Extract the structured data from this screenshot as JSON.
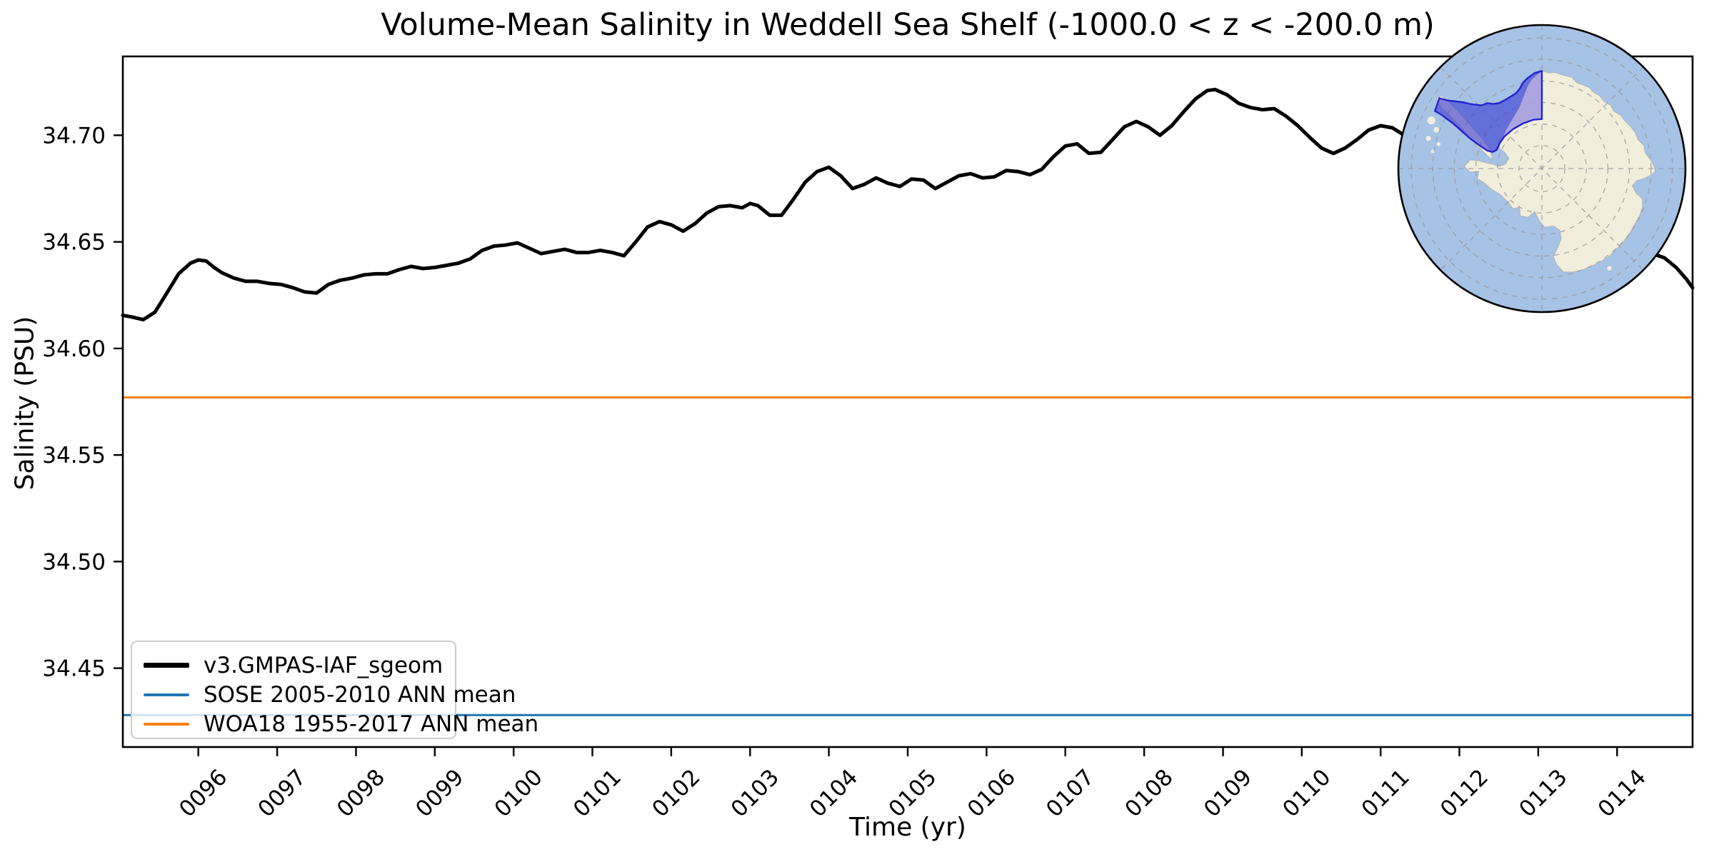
{
  "title": "Volume-Mean Salinity in Weddell Sea Shelf (-1000.0 < z < -200.0 m)",
  "axes": {
    "x": {
      "label": "Time (yr)",
      "tick_values": [
        96,
        97,
        98,
        99,
        100,
        101,
        102,
        103,
        104,
        105,
        106,
        107,
        108,
        109,
        110,
        111,
        112,
        113,
        114
      ],
      "tick_labels": [
        "0096",
        "0097",
        "0098",
        "0099",
        "0100",
        "0101",
        "0102",
        "0103",
        "0104",
        "0105",
        "0106",
        "0107",
        "0108",
        "0109",
        "0110",
        "0111",
        "0112",
        "0113",
        "0114"
      ],
      "lim": [
        95.042,
        114.958
      ],
      "tick_label_rotation_deg": 45
    },
    "y": {
      "label": "Salinity (PSU)",
      "tick_values": [
        34.45,
        34.5,
        34.55,
        34.6,
        34.65,
        34.7
      ],
      "tick_labels": [
        "34.45",
        "34.50",
        "34.55",
        "34.60",
        "34.65",
        "34.70"
      ],
      "lim": [
        34.413,
        34.737
      ]
    }
  },
  "legend": {
    "position": "lower left",
    "items": [
      {
        "label": "v3.GMPAS-IAF_sgeom",
        "color": "#000000",
        "thickness": "thick"
      },
      {
        "label": "SOSE 2005-2010 ANN mean",
        "color": "#1f77b4",
        "thickness": "thin"
      },
      {
        "label": "WOA18 1955-2017 ANN mean",
        "color": "#ff7f0e",
        "thickness": "thin"
      }
    ]
  },
  "chart_data": {
    "type": "line",
    "title": "Volume-Mean Salinity in Weddell Sea Shelf (-1000.0 < z < -200.0 m)",
    "xlabel": "Time (yr)",
    "ylabel": "Salinity (PSU)",
    "xlim": [
      95.042,
      114.958
    ],
    "ylim": [
      34.413,
      34.737
    ],
    "grid": false,
    "series": [
      {
        "name": "v3.GMPAS-IAF_sgeom",
        "color": "#000000",
        "line_width": 5,
        "points": [
          [
            95.042,
            34.6155
          ],
          [
            95.15,
            34.6148
          ],
          [
            95.3,
            34.6135
          ],
          [
            95.45,
            34.617
          ],
          [
            95.6,
            34.626
          ],
          [
            95.75,
            34.635
          ],
          [
            95.9,
            34.64
          ],
          [
            96.0,
            34.6415
          ],
          [
            96.1,
            34.641
          ],
          [
            96.2,
            34.638
          ],
          [
            96.3,
            34.6355
          ],
          [
            96.45,
            34.633
          ],
          [
            96.6,
            34.6315
          ],
          [
            96.75,
            34.6315
          ],
          [
            96.9,
            34.6305
          ],
          [
            97.05,
            34.63
          ],
          [
            97.2,
            34.6285
          ],
          [
            97.35,
            34.6265
          ],
          [
            97.5,
            34.626
          ],
          [
            97.65,
            34.63
          ],
          [
            97.8,
            34.632
          ],
          [
            97.95,
            34.633
          ],
          [
            98.1,
            34.6345
          ],
          [
            98.25,
            34.635
          ],
          [
            98.4,
            34.635
          ],
          [
            98.55,
            34.637
          ],
          [
            98.7,
            34.6385
          ],
          [
            98.85,
            34.6375
          ],
          [
            99.0,
            34.638
          ],
          [
            99.15,
            34.639
          ],
          [
            99.3,
            34.64
          ],
          [
            99.45,
            34.642
          ],
          [
            99.6,
            34.646
          ],
          [
            99.75,
            34.648
          ],
          [
            99.9,
            34.6485
          ],
          [
            100.05,
            34.6495
          ],
          [
            100.2,
            34.647
          ],
          [
            100.35,
            34.6445
          ],
          [
            100.5,
            34.6455
          ],
          [
            100.65,
            34.6465
          ],
          [
            100.8,
            34.645
          ],
          [
            100.95,
            34.645
          ],
          [
            101.1,
            34.646
          ],
          [
            101.25,
            34.645
          ],
          [
            101.4,
            34.6435
          ],
          [
            101.55,
            34.65
          ],
          [
            101.7,
            34.657
          ],
          [
            101.85,
            34.6595
          ],
          [
            102.0,
            34.658
          ],
          [
            102.15,
            34.655
          ],
          [
            102.3,
            34.6585
          ],
          [
            102.45,
            34.6635
          ],
          [
            102.6,
            34.6665
          ],
          [
            102.75,
            34.667
          ],
          [
            102.9,
            34.666
          ],
          [
            103.0,
            34.668
          ],
          [
            103.1,
            34.667
          ],
          [
            103.25,
            34.6625
          ],
          [
            103.4,
            34.6625
          ],
          [
            103.55,
            34.67
          ],
          [
            103.7,
            34.678
          ],
          [
            103.85,
            34.683
          ],
          [
            104.0,
            34.685
          ],
          [
            104.15,
            34.681
          ],
          [
            104.3,
            34.675
          ],
          [
            104.45,
            34.677
          ],
          [
            104.6,
            34.68
          ],
          [
            104.75,
            34.6775
          ],
          [
            104.9,
            34.676
          ],
          [
            105.05,
            34.6795
          ],
          [
            105.2,
            34.679
          ],
          [
            105.35,
            34.675
          ],
          [
            105.5,
            34.678
          ],
          [
            105.65,
            34.681
          ],
          [
            105.8,
            34.682
          ],
          [
            105.95,
            34.68
          ],
          [
            106.1,
            34.6805
          ],
          [
            106.25,
            34.6835
          ],
          [
            106.4,
            34.683
          ],
          [
            106.55,
            34.6815
          ],
          [
            106.7,
            34.684
          ],
          [
            106.85,
            34.69
          ],
          [
            107.0,
            34.695
          ],
          [
            107.15,
            34.696
          ],
          [
            107.3,
            34.6915
          ],
          [
            107.45,
            34.692
          ],
          [
            107.6,
            34.698
          ],
          [
            107.75,
            34.704
          ],
          [
            107.9,
            34.7065
          ],
          [
            108.05,
            34.704
          ],
          [
            108.2,
            34.7
          ],
          [
            108.35,
            34.7045
          ],
          [
            108.5,
            34.711
          ],
          [
            108.65,
            34.717
          ],
          [
            108.8,
            34.721
          ],
          [
            108.9,
            34.7215
          ],
          [
            109.05,
            34.719
          ],
          [
            109.2,
            34.715
          ],
          [
            109.35,
            34.713
          ],
          [
            109.5,
            34.712
          ],
          [
            109.65,
            34.7125
          ],
          [
            109.8,
            34.709
          ],
          [
            109.95,
            34.7045
          ],
          [
            110.1,
            34.699
          ],
          [
            110.25,
            34.694
          ],
          [
            110.4,
            34.6915
          ],
          [
            110.55,
            34.694
          ],
          [
            110.7,
            34.698
          ],
          [
            110.85,
            34.7025
          ],
          [
            111.0,
            34.7045
          ],
          [
            111.15,
            34.7035
          ],
          [
            111.3,
            34.7
          ],
          [
            111.45,
            34.699
          ],
          [
            111.6,
            34.7015
          ],
          [
            111.75,
            34.7
          ],
          [
            111.9,
            34.6965
          ],
          [
            112.05,
            34.6915
          ],
          [
            112.2,
            34.687
          ],
          [
            112.35,
            34.6825
          ],
          [
            112.5,
            34.679
          ],
          [
            112.65,
            34.676
          ],
          [
            112.8,
            34.6735
          ],
          [
            112.95,
            34.671
          ],
          [
            113.1,
            34.668
          ],
          [
            113.25,
            34.665
          ],
          [
            113.4,
            34.6615
          ],
          [
            113.55,
            34.658
          ],
          [
            113.7,
            34.6545
          ],
          [
            113.85,
            34.6515
          ],
          [
            114.0,
            34.6495
          ],
          [
            114.15,
            34.6475
          ],
          [
            114.3,
            34.646
          ],
          [
            114.45,
            34.6445
          ],
          [
            114.6,
            34.6425
          ],
          [
            114.75,
            34.638
          ],
          [
            114.88,
            34.6325
          ],
          [
            114.958,
            34.6285
          ]
        ]
      }
    ],
    "reference_lines": [
      {
        "name": "SOSE 2005-2010 ANN mean",
        "value": 34.428,
        "color": "#1f77b4",
        "line_width": 3
      },
      {
        "name": "WOA18 1955-2017 ANN mean",
        "value": 34.577,
        "color": "#ff7f0e",
        "line_width": 3
      }
    ],
    "legend_entries": [
      "v3.GMPAS-IAF_sgeom",
      "SOSE 2005-2010 ANN mean",
      "WOA18 1955-2017 ANN mean"
    ]
  },
  "inset_map": {
    "description": "south-polar-stereographic-antarctica-map-with-weddell-sea-shelf-region-highlighted",
    "colors": {
      "ocean": "#a6c2e5",
      "land": "#f1eedb",
      "coastline": "#9aa0a6",
      "graticule": "#999999",
      "region_fill": "#3c3cd2",
      "region_fill_opacity": 0.62,
      "region_over_land": "#b4abe2",
      "region_edge": "#2424cc",
      "border": "#000000"
    }
  }
}
